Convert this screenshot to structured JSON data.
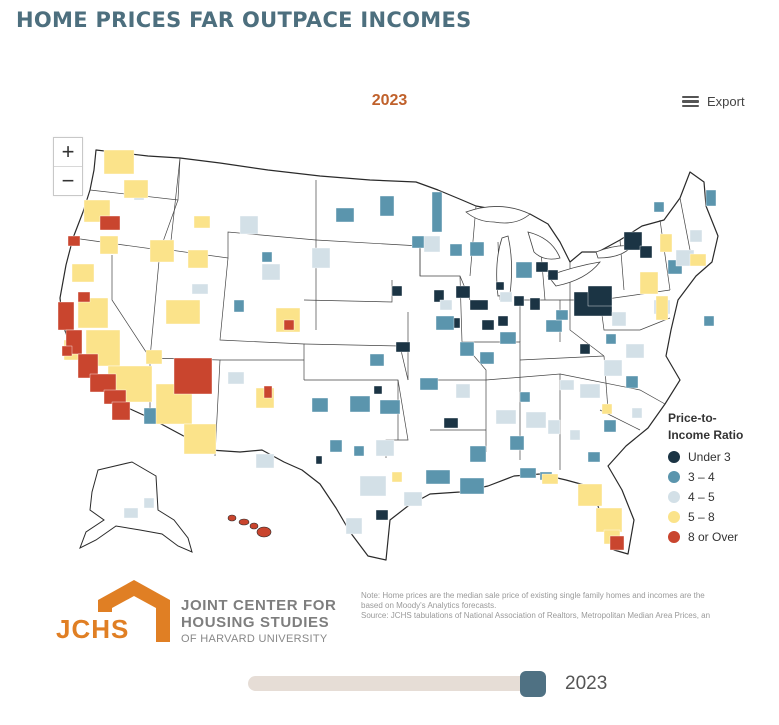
{
  "header": {
    "headline": "HOME PRICES FAR OUTPACE INCOMES"
  },
  "chart": {
    "year_title": "2023"
  },
  "toolbar": {
    "export_label": "Export",
    "zoom_in_label": "+",
    "zoom_out_label": "−"
  },
  "legend": {
    "title_line1": "Price-to-",
    "title_line2": "Income Ratio",
    "items": [
      {
        "label": "Under 3",
        "color": "#1b3444"
      },
      {
        "label": "3 – 4",
        "color": "#5b95ad"
      },
      {
        "label": "4 – 5",
        "color": "#d3e0e7"
      },
      {
        "label": "5 – 8",
        "color": "#fbe38a"
      },
      {
        "label": "8 or Over",
        "color": "#c9452e"
      }
    ]
  },
  "branding": {
    "mark": "JCHS",
    "line1": "JOINT CENTER FOR",
    "line2": "HOUSING STUDIES",
    "line3": "OF HARVARD UNIVERSITY"
  },
  "notes": {
    "line1": "Note: Home prices are the median sale price of existing single family homes and incomes are the",
    "line2": "based on Moody's Analytics forecasts.",
    "line3": "Source: JCHS tabulations of National Association of Realtors, Metropolitan Median Area Prices, an"
  },
  "slider": {
    "value_label": "2023",
    "position_fraction": 0.96
  },
  "map_regions": [
    {
      "name": "pacific-northwest",
      "category": "5 – 8"
    },
    {
      "name": "bay-area",
      "category": "8 or Over"
    },
    {
      "name": "southern-california",
      "category": "8 or Over"
    },
    {
      "name": "hawaii",
      "category": "8 or Over"
    },
    {
      "name": "mountain-west",
      "category": "5 – 8"
    },
    {
      "name": "great-lakes",
      "category": "Under 3"
    },
    {
      "name": "northeast-corridor",
      "category": "5 – 8"
    },
    {
      "name": "south-florida",
      "category": "5 – 8"
    },
    {
      "name": "southeast",
      "category": "4 – 5"
    },
    {
      "name": "midwest-plains",
      "category": "3 – 4"
    }
  ]
}
